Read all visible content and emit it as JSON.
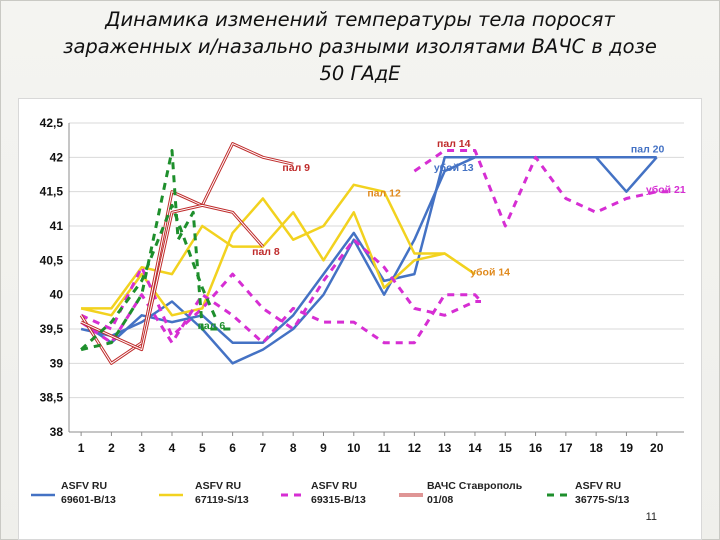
{
  "slide": {
    "title": "Динамика изменений температуры тела поросят\nзараженных и/назально разными изолятами ВАЧС в дозе\n50 ГАдЕ",
    "page_number": "11"
  },
  "chart_data": {
    "type": "line",
    "grid": "horizontal",
    "legend_placement": "bottom",
    "x": [
      1,
      2,
      3,
      4,
      5,
      6,
      7,
      8,
      9,
      10,
      11,
      12,
      13,
      14,
      15,
      16,
      17,
      18,
      19,
      20
    ],
    "x_ticks": [
      "1",
      "2",
      "3",
      "4",
      "5",
      "6",
      "7",
      "8",
      "9",
      "10",
      "11",
      "12",
      "13",
      "14",
      "15",
      "16",
      "17",
      "18",
      "19",
      "20"
    ],
    "ylim": [
      38,
      42.5
    ],
    "y_ticks": [
      {
        "value": 42.5,
        "label": "42,5"
      },
      {
        "value": 42,
        "label": "42"
      },
      {
        "value": 41.5,
        "label": "41,5"
      },
      {
        "value": 41,
        "label": "41"
      },
      {
        "value": 40.5,
        "label": "40,5"
      },
      {
        "value": 40,
        "label": "40"
      },
      {
        "value": 39.5,
        "label": "39,5"
      },
      {
        "value": 39,
        "label": "39"
      },
      {
        "value": 38.5,
        "label": "38,5"
      },
      {
        "value": 38,
        "label": "38"
      }
    ],
    "series": [
      {
        "name": "ASFV RU 69601-B/13",
        "legend_lines": [
          "ASFV RU",
          "69601-B/13"
        ],
        "color": "#4472c4",
        "style": "solid",
        "lines": [
          [
            [
              1,
              39.6
            ],
            [
              2,
              39.3
            ],
            [
              3,
              39.7
            ],
            [
              4,
              39.6
            ],
            [
              5,
              39.7
            ],
            [
              6,
              39.3
            ],
            [
              7,
              39.3
            ],
            [
              8,
              39.7
            ],
            [
              9,
              40.3
            ],
            [
              10,
              40.9
            ],
            [
              11,
              40.2
            ],
            [
              12,
              40.3
            ],
            [
              13,
              42
            ],
            [
              14,
              42
            ],
            [
              15,
              42
            ],
            [
              16,
              42
            ],
            [
              17,
              42
            ],
            [
              18,
              42
            ],
            [
              19,
              42
            ],
            [
              20,
              42
            ]
          ],
          [
            [
              1,
              39.5
            ],
            [
              2,
              39.4
            ],
            [
              3,
              39.6
            ],
            [
              4,
              39.9
            ],
            [
              5,
              39.5
            ],
            [
              6,
              39
            ],
            [
              7,
              39.2
            ],
            [
              8,
              39.5
            ],
            [
              9,
              40
            ],
            [
              10,
              40.8
            ],
            [
              11,
              40
            ],
            [
              12,
              40.8
            ],
            [
              13,
              41.8
            ],
            [
              14,
              42
            ],
            [
              15,
              42
            ],
            [
              16,
              42
            ],
            [
              17,
              42
            ],
            [
              18,
              42
            ],
            [
              19,
              41.5
            ],
            [
              20,
              42
            ]
          ]
        ]
      },
      {
        "name": "ASFV RU 67119-S/13",
        "legend_lines": [
          "ASFV RU",
          "67119-S/13"
        ],
        "color": "#f2d21f",
        "style": "solid",
        "lines": [
          [
            [
              1,
              39.8
            ],
            [
              2,
              39.8
            ],
            [
              3,
              40.4
            ],
            [
              4,
              40.3
            ],
            [
              5,
              41
            ],
            [
              6,
              40.7
            ],
            [
              7,
              40.7
            ],
            [
              8,
              41.2
            ],
            [
              9,
              40.5
            ],
            [
              10,
              41.2
            ],
            [
              11,
              40.1
            ],
            [
              12,
              40.5
            ],
            [
              13,
              40.6
            ],
            [
              14,
              40.3
            ]
          ],
          [
            [
              1,
              39.8
            ],
            [
              2,
              39.7
            ],
            [
              3,
              40.3
            ],
            [
              4,
              39.7
            ],
            [
              5,
              39.8
            ],
            [
              6,
              40.9
            ],
            [
              7,
              41.4
            ],
            [
              8,
              40.8
            ],
            [
              9,
              41
            ],
            [
              10,
              41.6
            ],
            [
              11,
              41.5
            ],
            [
              12,
              40.6
            ],
            [
              13,
              40.6
            ],
            [
              14,
              40.3
            ]
          ]
        ]
      },
      {
        "name": "ASFV RU 69315-B/13",
        "legend_lines": [
          "ASFV RU",
          "69315-B/13"
        ],
        "color": "#d62ed3",
        "style": "dashed",
        "lines": [
          [
            [
              1,
              39.7
            ],
            [
              2,
              39.5
            ],
            [
              3,
              40.4
            ],
            [
              4,
              39.4
            ],
            [
              5,
              39.8
            ],
            [
              6,
              40.3
            ],
            [
              7,
              39.8
            ],
            [
              8,
              39.5
            ],
            [
              9,
              40.2
            ],
            [
              10,
              40.8
            ],
            [
              11,
              40.4
            ],
            [
              12,
              39.8
            ],
            [
              13,
              39.7
            ],
            [
              14,
              39.9
            ],
            [
              14.2,
              39.9
            ]
          ],
          [
            [
              1,
              39.6
            ],
            [
              2,
              39.3
            ],
            [
              3,
              40
            ],
            [
              4,
              39.3
            ],
            [
              5,
              40
            ],
            [
              6,
              39.7
            ],
            [
              7,
              39.3
            ],
            [
              8,
              39.8
            ],
            [
              9,
              39.6
            ],
            [
              10,
              39.6
            ],
            [
              11,
              39.3
            ],
            [
              12,
              39.3
            ],
            [
              13,
              40
            ],
            [
              14,
              40
            ],
            [
              14.2,
              39.9
            ]
          ],
          [
            [
              12,
              41.8
            ],
            [
              13,
              42.1
            ],
            [
              14,
              42.1
            ],
            [
              15,
              41
            ],
            [
              16,
              42
            ],
            [
              17,
              41.4
            ],
            [
              18,
              41.2
            ],
            [
              19,
              41.4
            ],
            [
              20,
              41.5
            ],
            [
              20.5,
              41.5
            ]
          ]
        ]
      },
      {
        "name": "ВАЧС Ставрополь 01/08",
        "legend_lines": [
          "ВАЧС Ставрополь",
          "01/08"
        ],
        "color": "#bf2b2b",
        "style": "double",
        "lines": [
          [
            [
              1,
              39.7
            ],
            [
              2,
              39
            ],
            [
              3,
              39.3
            ],
            [
              4,
              41.5
            ],
            [
              5,
              41.3
            ],
            [
              6,
              42.2
            ],
            [
              7,
              42
            ],
            [
              8,
              41.9
            ]
          ],
          [
            [
              1,
              39.6
            ],
            [
              2,
              39.4
            ],
            [
              3,
              39.2
            ],
            [
              4,
              41.2
            ],
            [
              5,
              41.3
            ],
            [
              6,
              41.2
            ],
            [
              7,
              40.7
            ]
          ]
        ]
      },
      {
        "name": "ASFV RU 36775-S/13",
        "legend_lines": [
          "ASFV RU",
          "36775-S/13"
        ],
        "color": "#1e8f2c",
        "style": "dashed",
        "lines": [
          [
            [
              1,
              39.2
            ],
            [
              2,
              39.3
            ],
            [
              3,
              40
            ],
            [
              4,
              42.1
            ],
            [
              4.2,
              40.8
            ],
            [
              4.7,
              41.2
            ],
            [
              5,
              39.5
            ],
            [
              6,
              39.5
            ]
          ],
          [
            [
              1,
              39.2
            ],
            [
              2,
              39.6
            ],
            [
              3,
              40.2
            ],
            [
              4,
              41.3
            ],
            [
              5,
              40.1
            ],
            [
              5.5,
              39.6
            ]
          ]
        ]
      }
    ],
    "annotations": [
      {
        "text": "пал 14",
        "x": 13.3,
        "y": 42.15,
        "color": "#bf2b2b"
      },
      {
        "text": "пал 20",
        "x": 19.7,
        "y": 42.07,
        "color": "#4472c4"
      },
      {
        "text": "пал 9",
        "x": 8.1,
        "y": 41.8,
        "color": "#bf2b2b"
      },
      {
        "text": "убой 13",
        "x": 13.3,
        "y": 41.8,
        "color": "#4472c4"
      },
      {
        "text": "пал 12",
        "x": 11,
        "y": 41.43,
        "color": "#e08a1e"
      },
      {
        "text": "убой 21",
        "x": 20.3,
        "y": 41.48,
        "color": "#d62ed3"
      },
      {
        "text": "пал 8",
        "x": 7.1,
        "y": 40.58,
        "color": "#bf2b2b"
      },
      {
        "text": "убой 14",
        "x": 14.5,
        "y": 40.28,
        "color": "#e08a1e"
      },
      {
        "text": "пал 6",
        "x": 5.3,
        "y": 39.5,
        "color": "#1e8f2c"
      }
    ]
  }
}
